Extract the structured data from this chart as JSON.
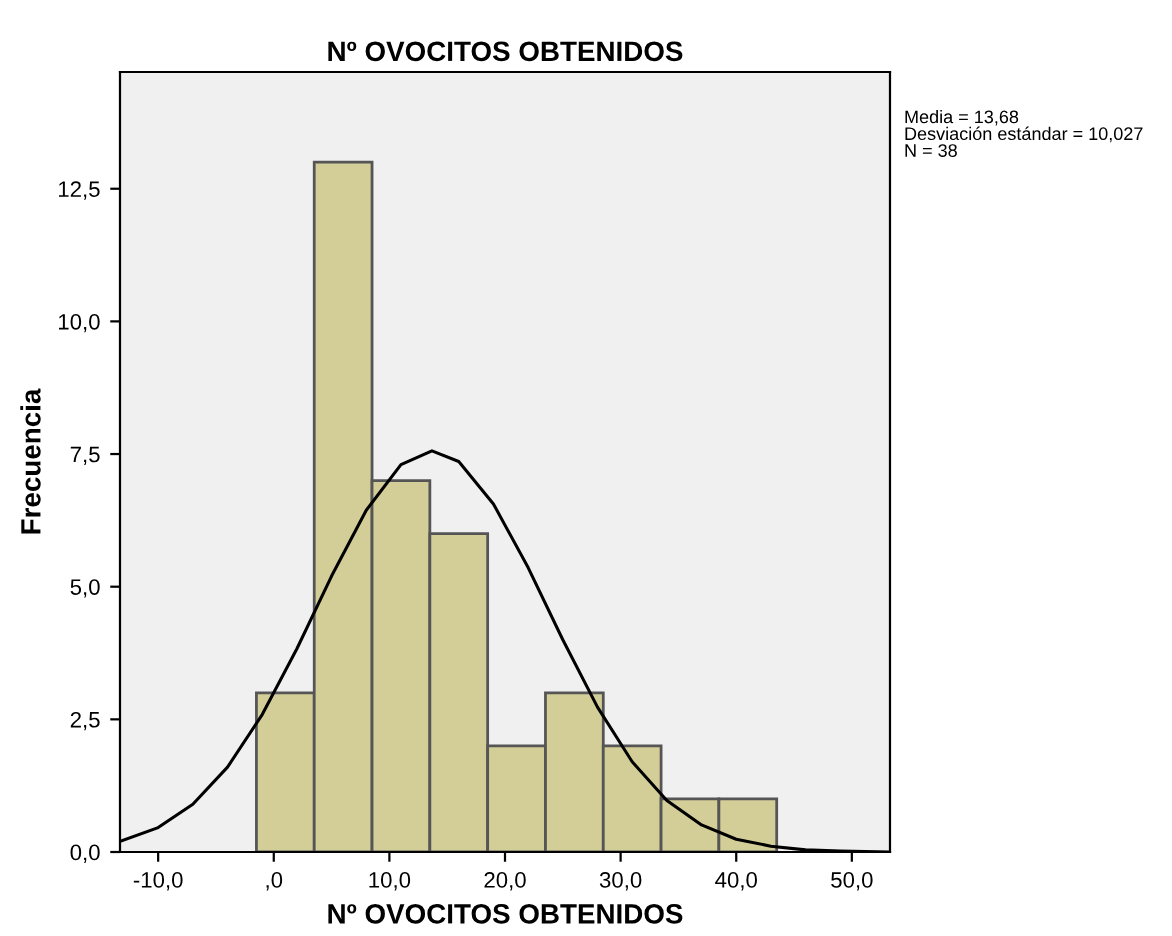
{
  "chart_data": {
    "type": "histogram",
    "title": "Nº OVOCITOS OBTENIDOS",
    "xlabel": "Nº OVOCITOS OBTENIDOS",
    "ylabel": "Frecuencia",
    "bins": [
      -1.5,
      3.5,
      8.5,
      13.5,
      18.5,
      23.5,
      28.5,
      33.5,
      38.5,
      43.5
    ],
    "values": [
      3,
      13,
      7,
      6,
      2,
      3,
      2,
      1,
      1
    ],
    "color": "#d3ce97",
    "series": [
      {
        "type": "line",
        "color": "#000000",
        "x": [
          -13.3,
          -10,
          -7,
          -4,
          -1,
          2,
          5,
          8,
          11,
          13.68,
          16,
          19,
          22,
          25,
          28,
          31,
          34,
          37,
          40,
          43,
          46,
          49,
          53.3
        ],
        "values": [
          0.2,
          0.46,
          0.9,
          1.6,
          2.59,
          3.83,
          5.2,
          6.44,
          7.3,
          7.56,
          7.36,
          6.56,
          5.36,
          4.0,
          2.73,
          1.7,
          0.97,
          0.51,
          0.24,
          0.11,
          0.04,
          0.02,
          0.0
        ]
      }
    ],
    "xlim": [
      -13.3,
      53.3
    ],
    "ylim": [
      0,
      14.7
    ],
    "xticks": [
      {
        "value": -10,
        "label": "-10,0"
      },
      {
        "value": 0,
        "label": ",0"
      },
      {
        "value": 10,
        "label": "10,0"
      },
      {
        "value": 20,
        "label": "20,0"
      },
      {
        "value": 30,
        "label": "30,0"
      },
      {
        "value": 40,
        "label": "40,0"
      },
      {
        "value": 50,
        "label": "50,0"
      }
    ],
    "yticks": [
      {
        "value": 0,
        "label": "0,0"
      },
      {
        "value": 2.5,
        "label": "2,5"
      },
      {
        "value": 5,
        "label": "5,0"
      },
      {
        "value": 7.5,
        "label": "7,5"
      },
      {
        "value": 10,
        "label": "10,0"
      },
      {
        "value": 12.5,
        "label": "12,5"
      }
    ],
    "annotations": [
      "Media = 13,68\nDesviación estándar = 10,027\nN = 38"
    ],
    "grid": false,
    "legend": false
  }
}
